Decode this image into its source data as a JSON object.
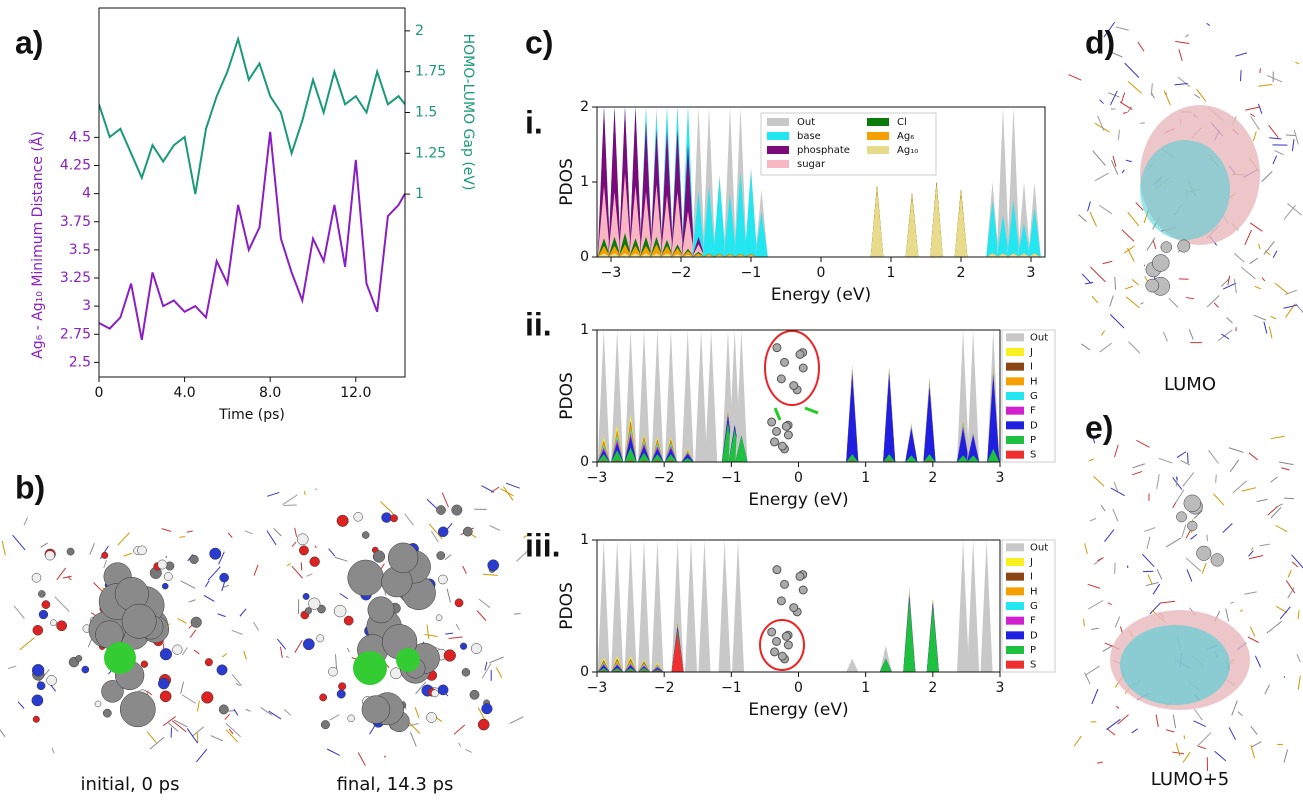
{
  "panel_labels": {
    "b": "b)",
    "c": "c)",
    "d": "d)",
    "e": "e)"
  },
  "captions": {
    "initial": "initial, 0 ps",
    "final": "final, 14.3 ps",
    "lumo": "LUMO",
    "lumo5": "LUMO+5"
  },
  "chart_data": [
    {
      "type": "line",
      "label": "a)",
      "xlabel": "Time (ps)",
      "ylabel": "Ag₆ - Ag₁₀ Minimum Distance (Å)",
      "y2label": "HOMO-LUMO Gap (eV)",
      "x": [
        0,
        0.5,
        1,
        1.5,
        2,
        2.5,
        3,
        3.5,
        4,
        4.5,
        5,
        5.5,
        6,
        6.5,
        7,
        7.5,
        8,
        8.5,
        9,
        9.5,
        10,
        10.5,
        11,
        11.5,
        12,
        12.5,
        13,
        13.5,
        14,
        14.3
      ],
      "xlim": [
        0,
        14.3
      ],
      "xticks": [
        0,
        {
          "value": 4,
          "label": "4.0"
        },
        {
          "value": 8,
          "label": "8.0"
        },
        {
          "value": 12,
          "label": "12.0"
        }
      ],
      "ylim": [
        2.37,
        5.65
      ],
      "yticks": [
        2.5,
        2.75,
        3,
        3.25,
        3.5,
        3.75,
        4,
        4.25,
        4.5
      ],
      "y2lim": [
        -0.12,
        2.14
      ],
      "y2ticks": [
        1,
        1.25,
        1.5,
        1.75,
        2
      ],
      "series": [
        {
          "color": "#8a1fc4",
          "values": [
            2.85,
            2.8,
            2.9,
            3.2,
            2.7,
            3.3,
            3.0,
            3.05,
            2.95,
            3.0,
            2.9,
            3.4,
            3.2,
            3.9,
            3.5,
            3.7,
            4.55,
            3.6,
            3.3,
            3.05,
            3.6,
            3.4,
            3.9,
            3.35,
            4.3,
            3.2,
            2.95,
            3.8,
            3.9,
            4.0
          ]
        },
        {
          "color": "#1a9a78",
          "axis": "y2",
          "values": [
            1.55,
            1.35,
            1.4,
            1.25,
            1.1,
            1.3,
            1.2,
            1.3,
            1.35,
            1.0,
            1.4,
            1.6,
            1.75,
            1.95,
            1.7,
            1.8,
            1.6,
            1.5,
            1.25,
            1.45,
            1.7,
            1.5,
            1.75,
            1.55,
            1.6,
            1.5,
            1.75,
            1.55,
            1.6,
            1.55
          ]
        }
      ]
    },
    {
      "type": "area",
      "label": "i.",
      "xlabel": "Energy (eV)",
      "ylabel": "PDOS",
      "legend": "upper center",
      "x": [
        -3.1,
        -2.95,
        -2.8,
        -2.65,
        -2.5,
        -2.35,
        -2.2,
        -2.05,
        -1.9,
        -1.75,
        -1.6,
        -1.45,
        -1.3,
        -1.15,
        -1.0,
        -0.85,
        0.8,
        1.3,
        1.65,
        2.0,
        2.45,
        2.6,
        2.75,
        2.9,
        3.05
      ],
      "xlim": [
        -3.2,
        3.2
      ],
      "xticks": [
        {
          "value": -3,
          "label": "−3"
        },
        {
          "value": -2,
          "label": "−2"
        },
        {
          "value": -1,
          "label": "−1"
        },
        0,
        1,
        2,
        3
      ],
      "ylim": [
        0,
        2
      ],
      "yticks": [
        0,
        1,
        2
      ],
      "series": [
        {
          "name": "Out",
          "color": "#c8c8c8",
          "stacked": false,
          "values": [
            2,
            2,
            2,
            2,
            2,
            2,
            2,
            2,
            2,
            2,
            2,
            1.1,
            2,
            2,
            1.2,
            0.9,
            0.9,
            0.85,
            1,
            0.9,
            1,
            2,
            2,
            1,
            1
          ]
        },
        {
          "name": "base",
          "color": "#22e6f0",
          "values": [
            0,
            0,
            0,
            0,
            0.2,
            0.2,
            0.3,
            0.3,
            0.5,
            0.6,
            0.9,
            1,
            0.8,
            1.1,
            1.1,
            0.6,
            0,
            0,
            0,
            0,
            0.7,
            0.5,
            0.7,
            0.4,
            0.6
          ]
        },
        {
          "name": "phosphate",
          "color": "#7b0a7b",
          "values": [
            1.05,
            1.13,
            0.88,
            1.05,
            0.93,
            0.73,
            0.87,
            0.83,
            0.89,
            0.1,
            0,
            0,
            0,
            0,
            0,
            0,
            0,
            0,
            0,
            0,
            0,
            0,
            0,
            0,
            0
          ]
        },
        {
          "name": "sugar",
          "color": "#f7b6c2",
          "values": [
            0.7,
            0.6,
            0.8,
            0.7,
            0.6,
            0.7,
            0.6,
            0.7,
            0.5,
            0.1,
            0,
            0,
            0,
            0,
            0,
            0,
            0,
            0,
            0,
            0,
            0,
            0,
            0,
            0,
            0
          ]
        },
        {
          "name": "Cl",
          "color": "#0a7a0a",
          "values": [
            0.1,
            0.12,
            0.15,
            0.1,
            0.12,
            0.1,
            0.08,
            0.05,
            0.03,
            0.02,
            0,
            0,
            0,
            0,
            0,
            0,
            0,
            0,
            0,
            0,
            0,
            0,
            0,
            0,
            0
          ]
        },
        {
          "name": "Ag₆",
          "color": "#f5a000",
          "values": [
            0.1,
            0.1,
            0.12,
            0.1,
            0.1,
            0.12,
            0.1,
            0.08,
            0.05,
            0.03,
            0.02,
            0.02,
            0.02,
            0.02,
            0.02,
            0,
            0.05,
            0.05,
            0.05,
            0.05,
            0,
            0,
            0,
            0,
            0
          ]
        },
        {
          "name": "Ag₁₀",
          "color": "#e8dc8c",
          "values": [
            0.05,
            0.05,
            0.05,
            0.05,
            0.05,
            0.05,
            0.05,
            0.04,
            0.03,
            0.02,
            0.02,
            0.02,
            0.02,
            0.02,
            0.02,
            0,
            0.9,
            0.8,
            0.95,
            0.85,
            0.05,
            0.05,
            0.05,
            0.05,
            0.05
          ]
        }
      ]
    },
    {
      "type": "area",
      "label": "ii.",
      "xlabel": "Energy (eV)",
      "ylabel": "PDOS",
      "legend": "right",
      "x": [
        -2.9,
        -2.7,
        -2.5,
        -2.3,
        -2.1,
        -1.9,
        -1.65,
        -1.45,
        -1.3,
        -1.05,
        -0.95,
        -0.85,
        0.8,
        1.35,
        1.68,
        1.95,
        2.45,
        2.6,
        2.9
      ],
      "xlim": [
        -3,
        3
      ],
      "xticks": [
        {
          "value": -3,
          "label": "−3"
        },
        {
          "value": -2,
          "label": "−2"
        },
        {
          "value": -1,
          "label": "−1"
        },
        0,
        1,
        2,
        3
      ],
      "ylim": [
        0,
        1
      ],
      "yticks": [
        0,
        1
      ],
      "series": [
        {
          "name": "Out",
          "color": "#c8c8c8",
          "stacked": false,
          "values": [
            1,
            1,
            1,
            1,
            1,
            1,
            1,
            1,
            1,
            1,
            1,
            1,
            0.75,
            0.72,
            0.3,
            0.65,
            1,
            1,
            1
          ]
        },
        {
          "name": "J",
          "color": "#f8f020",
          "values": [
            0.03,
            0.04,
            0.05,
            0.02,
            0.02,
            0.02,
            0.01,
            0,
            0,
            0.01,
            0,
            0,
            0.01,
            0.01,
            0,
            0.01,
            0.01,
            0,
            0.01
          ]
        },
        {
          "name": "I",
          "color": "#8b4513",
          "values": [
            0.01,
            0.01,
            0.02,
            0.01,
            0.01,
            0.01,
            0,
            0,
            0,
            0,
            0,
            0,
            0,
            0,
            0,
            0,
            0,
            0,
            0
          ]
        },
        {
          "name": "H",
          "color": "#f5a000",
          "values": [
            0.02,
            0.03,
            0.04,
            0.02,
            0.02,
            0.02,
            0.01,
            0,
            0,
            0.01,
            0,
            0,
            0.01,
            0.01,
            0,
            0.01,
            0.01,
            0,
            0.01
          ]
        },
        {
          "name": "G",
          "color": "#22e6f0",
          "values": [
            0.02,
            0.03,
            0.03,
            0.02,
            0.02,
            0.02,
            0.01,
            0,
            0,
            0.01,
            0,
            0,
            0.02,
            0.02,
            0.01,
            0.02,
            0.02,
            0.01,
            0.02
          ]
        },
        {
          "name": "F",
          "color": "#d020d0",
          "values": [
            0.02,
            0.03,
            0.03,
            0.02,
            0.02,
            0.02,
            0.01,
            0,
            0,
            0.01,
            0,
            0,
            0.02,
            0.02,
            0.01,
            0.02,
            0.02,
            0.01,
            0.02
          ]
        },
        {
          "name": "D",
          "color": "#1f1fe0",
          "values": [
            0.03,
            0.05,
            0.08,
            0.05,
            0.04,
            0.04,
            0.03,
            0,
            0,
            0.05,
            0.03,
            0,
            0.6,
            0.6,
            0.2,
            0.5,
            0.2,
            0.15,
            0.55
          ]
        },
        {
          "name": "P",
          "color": "#1fc040",
          "values": [
            0.05,
            0.08,
            0.1,
            0.06,
            0.05,
            0.05,
            0.03,
            0,
            0,
            0.3,
            0.25,
            0.2,
            0.05,
            0.05,
            0.05,
            0.05,
            0.05,
            0.05,
            0.1
          ]
        },
        {
          "name": "S",
          "color": "#f03030",
          "values": [
            0.01,
            0.01,
            0.01,
            0.01,
            0.01,
            0.01,
            0,
            0,
            0,
            0,
            0,
            0,
            0.01,
            0.01,
            0,
            0.01,
            0,
            0,
            0
          ]
        }
      ]
    },
    {
      "type": "area",
      "label": "iii.",
      "xlabel": "Energy (eV)",
      "ylabel": "PDOS",
      "legend": "right",
      "x": [
        -2.9,
        -2.7,
        -2.5,
        -2.3,
        -2.1,
        -1.8,
        -1.6,
        -1.4,
        -1.1,
        -0.9,
        0.8,
        1.3,
        1.65,
        2.0,
        2.45,
        2.6,
        2.8
      ],
      "xlim": [
        -3,
        3
      ],
      "xticks": [
        {
          "value": -3,
          "label": "−3"
        },
        {
          "value": -2,
          "label": "−2"
        },
        {
          "value": -1,
          "label": "−1"
        },
        0,
        1,
        2,
        3
      ],
      "ylim": [
        0,
        1
      ],
      "yticks": [
        0,
        1
      ],
      "series": [
        {
          "name": "Out",
          "color": "#c8c8c8",
          "stacked": false,
          "values": [
            1,
            1,
            1,
            1,
            1,
            1,
            1,
            1,
            1,
            1,
            0.1,
            0.2,
            0.65,
            0.55,
            1,
            1,
            1
          ]
        },
        {
          "name": "J",
          "color": "#f8f020",
          "values": [
            0.02,
            0.02,
            0.02,
            0.01,
            0.01,
            0.01,
            0,
            0,
            0,
            0,
            0,
            0,
            0.01,
            0.01,
            0,
            0,
            0
          ]
        },
        {
          "name": "I",
          "color": "#8b4513",
          "values": [
            0.01,
            0.01,
            0.01,
            0.01,
            0,
            0,
            0,
            0,
            0,
            0,
            0,
            0,
            0,
            0,
            0,
            0,
            0
          ]
        },
        {
          "name": "H",
          "color": "#f5a000",
          "values": [
            0.01,
            0.02,
            0.02,
            0.01,
            0.01,
            0.01,
            0,
            0,
            0,
            0,
            0,
            0,
            0.01,
            0.01,
            0,
            0,
            0
          ]
        },
        {
          "name": "G",
          "color": "#22e6f0",
          "values": [
            0.01,
            0.01,
            0.01,
            0.01,
            0.01,
            0.01,
            0,
            0,
            0,
            0,
            0,
            0,
            0.01,
            0.01,
            0,
            0,
            0
          ]
        },
        {
          "name": "F",
          "color": "#d020d0",
          "values": [
            0.01,
            0.01,
            0.01,
            0.01,
            0.01,
            0.01,
            0,
            0,
            0,
            0,
            0,
            0,
            0.01,
            0.01,
            0,
            0,
            0
          ]
        },
        {
          "name": "D",
          "color": "#1f1fe0",
          "values": [
            0.02,
            0.02,
            0.02,
            0.01,
            0.01,
            0.02,
            0,
            0,
            0,
            0,
            0,
            0,
            0.02,
            0.02,
            0,
            0,
            0
          ]
        },
        {
          "name": "P",
          "color": "#1fc040",
          "values": [
            0.02,
            0.02,
            0.02,
            0.02,
            0.01,
            0.02,
            0,
            0,
            0,
            0,
            0,
            0.1,
            0.55,
            0.5,
            0,
            0,
            0
          ]
        },
        {
          "name": "S",
          "color": "#f03030",
          "values": [
            0.01,
            0.01,
            0.01,
            0.01,
            0.01,
            0.3,
            0,
            0,
            0,
            0,
            0,
            0,
            0,
            0,
            0,
            0,
            0
          ]
        }
      ]
    }
  ]
}
